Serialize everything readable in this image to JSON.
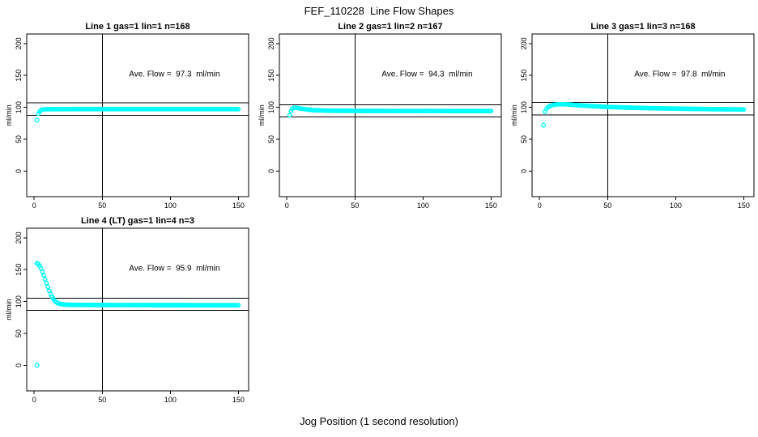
{
  "figure": {
    "title": "FEF_110228  Line Flow Shapes",
    "xlabel": "Jog Position (1 second resolution)",
    "ylabel": "ml/min",
    "background_color": "#ffffff",
    "point_color": "#00ffff",
    "axis_color": "#000000"
  },
  "chart_data": [
    {
      "type": "scatter",
      "title": "Line 1 gas=1 lin=1 n=168",
      "line": 1,
      "gas": 1,
      "lin": 1,
      "n": 168,
      "annotation": "Ave. Flow =  97.3  ml/min",
      "ave_flow_ml_min": 97.3,
      "ylabel": "ml/min",
      "ref_lines_y": [
        107.0,
        87.6
      ],
      "vline_x": 50,
      "xlim": [
        -5.5,
        157.5
      ],
      "ylim": [
        -40,
        215
      ],
      "xticks": [
        0,
        50,
        100,
        150
      ],
      "yticks": [
        0,
        50,
        100,
        150,
        200
      ],
      "annotation_pos": [
        103,
        152
      ],
      "outlier_points": [
        [
          2,
          80
        ]
      ],
      "x_step": 1,
      "curve_points": [
        [
          3,
          90
        ],
        [
          4,
          93.5
        ],
        [
          5,
          95.5
        ],
        [
          6,
          96.5
        ],
        [
          8,
          97
        ],
        [
          12,
          97.2
        ],
        [
          30,
          97.3
        ],
        [
          150,
          97.3
        ]
      ],
      "row": 0,
      "col": 0
    },
    {
      "type": "scatter",
      "title": "Line 2 gas=1 lin=2 n=167",
      "line": 2,
      "gas": 1,
      "lin": 2,
      "n": 167,
      "annotation": "Ave. Flow =  94.3  ml/min",
      "ave_flow_ml_min": 94.3,
      "ylabel": "ml/min",
      "ref_lines_y": [
        103.7,
        84.9
      ],
      "vline_x": 50,
      "xlim": [
        -5.5,
        157.5
      ],
      "ylim": [
        -40,
        215
      ],
      "xticks": [
        0,
        50,
        100,
        150
      ],
      "yticks": [
        0,
        50,
        100,
        150,
        200
      ],
      "annotation_pos": [
        103,
        152
      ],
      "outlier_points": [],
      "x_step": 1,
      "curve_points": [
        [
          2,
          87.5
        ],
        [
          3,
          94
        ],
        [
          4,
          97.5
        ],
        [
          5,
          99
        ],
        [
          6,
          99.5
        ],
        [
          8,
          99
        ],
        [
          10,
          98.2
        ],
        [
          13,
          97.2
        ],
        [
          16,
          96.3
        ],
        [
          20,
          95.6
        ],
        [
          25,
          95.1
        ],
        [
          30,
          94.8
        ],
        [
          40,
          94.6
        ],
        [
          60,
          94.4
        ],
        [
          100,
          94.3
        ],
        [
          150,
          94.2
        ]
      ],
      "row": 0,
      "col": 1
    },
    {
      "type": "scatter",
      "title": "Line 3 gas=1 lin=3 n=168",
      "line": 3,
      "gas": 1,
      "lin": 3,
      "n": 168,
      "annotation": "Ave. Flow =  97.8  ml/min",
      "ave_flow_ml_min": 97.8,
      "ylabel": "ml/min",
      "ref_lines_y": [
        107.6,
        88.0
      ],
      "vline_x": 50,
      "xlim": [
        -5.5,
        157.5
      ],
      "ylim": [
        -40,
        215
      ],
      "xticks": [
        0,
        50,
        100,
        150
      ],
      "yticks": [
        0,
        50,
        100,
        150,
        200
      ],
      "annotation_pos": [
        103,
        152
      ],
      "outlier_points": [
        [
          3,
          72
        ]
      ],
      "x_step": 1,
      "curve_points": [
        [
          4,
          93
        ],
        [
          5,
          97.5
        ],
        [
          6,
          100
        ],
        [
          8,
          102.5
        ],
        [
          10,
          103.8
        ],
        [
          13,
          104.8
        ],
        [
          17,
          105
        ],
        [
          22,
          104.4
        ],
        [
          30,
          103
        ],
        [
          40,
          101.7
        ],
        [
          50,
          100.6
        ],
        [
          70,
          99.3
        ],
        [
          90,
          98.4
        ],
        [
          110,
          97.7
        ],
        [
          130,
          97.1
        ],
        [
          150,
          96.7
        ]
      ],
      "row": 1,
      "col": 0,
      "row_note": "third panel of top row",
      "grid_row": 0,
      "grid_col": 2
    },
    {
      "type": "scatter",
      "title": "Line 4 (LT) gas=1 lin=4 n=3",
      "line": 4,
      "gas": 1,
      "lin": 4,
      "n": 3,
      "annotation": "Ave. Flow =  95.9  ml/min",
      "ave_flow_ml_min": 95.9,
      "ylabel": "ml/min",
      "ref_lines_y": [
        105.5,
        86.3
      ],
      "vline_x": 50,
      "xlim": [
        -5.5,
        157.5
      ],
      "ylim": [
        -40,
        215
      ],
      "xticks": [
        0,
        50,
        100,
        150
      ],
      "yticks": [
        0,
        50,
        100,
        150,
        200
      ],
      "annotation_pos": [
        103,
        152
      ],
      "outlier_points": [
        [
          2,
          0
        ]
      ],
      "x_step": 1,
      "curve_points": [
        [
          2,
          160
        ],
        [
          3,
          159
        ],
        [
          4,
          156
        ],
        [
          5,
          152
        ],
        [
          6,
          147
        ],
        [
          7,
          141
        ],
        [
          8,
          135
        ],
        [
          9,
          129
        ],
        [
          10,
          123
        ],
        [
          11,
          117
        ],
        [
          12,
          112
        ],
        [
          13,
          108
        ],
        [
          14,
          104.5
        ],
        [
          15,
          101.5
        ],
        [
          16,
          99.3
        ],
        [
          17,
          97.8
        ],
        [
          18,
          96.8
        ],
        [
          20,
          95.9
        ],
        [
          23,
          95.3
        ],
        [
          26,
          95
        ],
        [
          30,
          94.8
        ],
        [
          40,
          94.6
        ],
        [
          60,
          94.5
        ],
        [
          100,
          94.4
        ],
        [
          150,
          94.3
        ]
      ],
      "grid_row": 1,
      "grid_col": 0
    }
  ]
}
